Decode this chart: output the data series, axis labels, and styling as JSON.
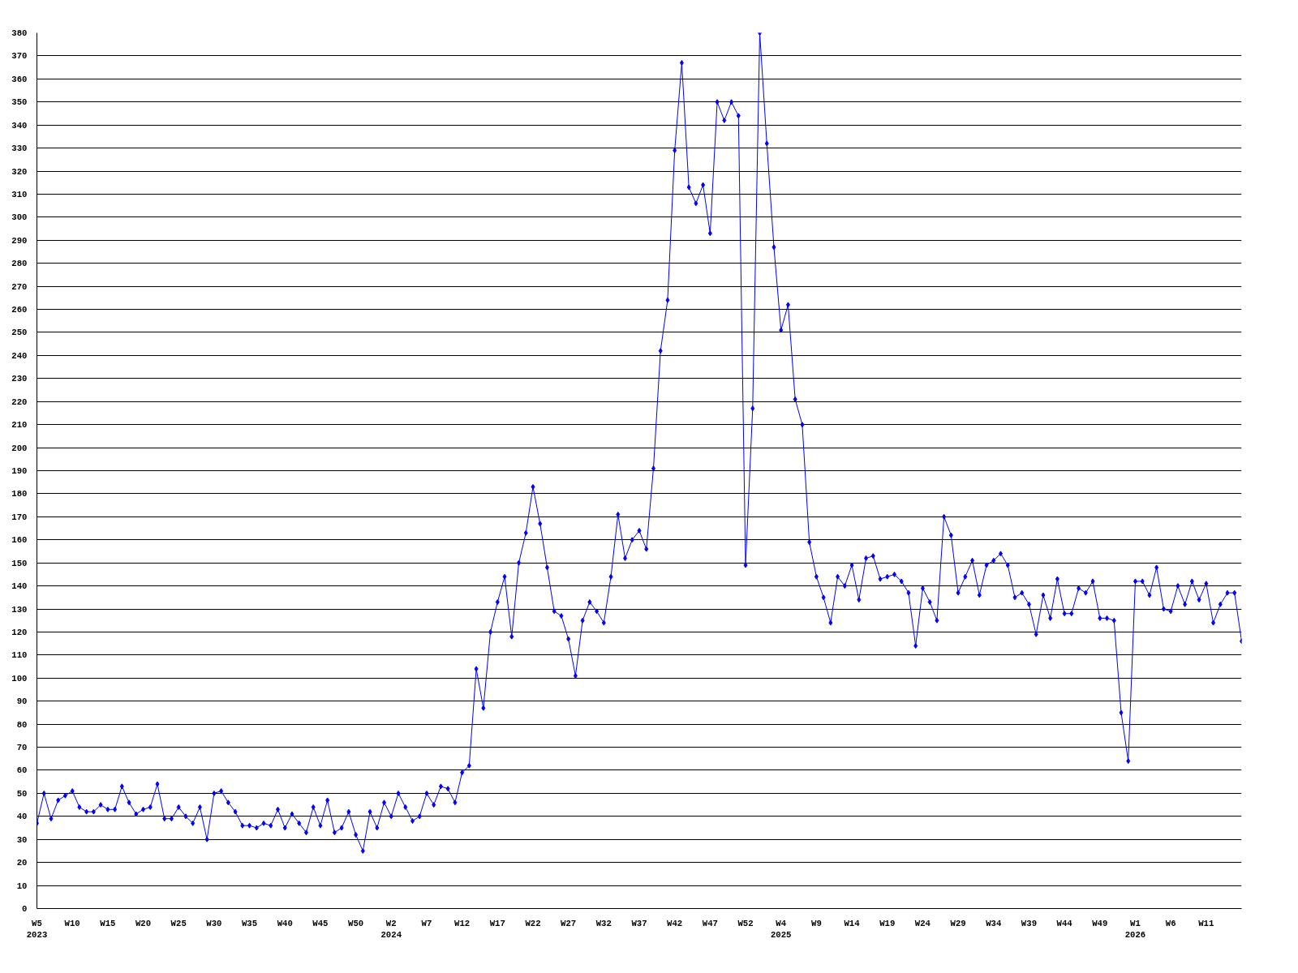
{
  "chart_data": {
    "type": "line",
    "categories": [
      "W5\n2023",
      null,
      null,
      null,
      null,
      "W10",
      null,
      null,
      null,
      null,
      "W15",
      null,
      null,
      null,
      null,
      "W20",
      null,
      null,
      null,
      null,
      "W25",
      null,
      null,
      null,
      null,
      "W30",
      null,
      null,
      null,
      null,
      "W35",
      null,
      null,
      null,
      null,
      "W40",
      null,
      null,
      null,
      null,
      "W45",
      null,
      null,
      null,
      null,
      "W50",
      null,
      null,
      null,
      null,
      "W2\n2024",
      null,
      null,
      null,
      null,
      "W7",
      null,
      null,
      null,
      null,
      "W12",
      null,
      null,
      null,
      null,
      "W17",
      null,
      null,
      null,
      null,
      "W22",
      null,
      null,
      null,
      null,
      "W27",
      null,
      null,
      null,
      null,
      "W32",
      null,
      null,
      null,
      null,
      "W37",
      null,
      null,
      null,
      null,
      "W42",
      null,
      null,
      null,
      null,
      "W47",
      null,
      null,
      null,
      null,
      "W52",
      null,
      null,
      null,
      null,
      "W4\n2025",
      null,
      null,
      null,
      null,
      "W9",
      null,
      null,
      null,
      null,
      "W14",
      null,
      null,
      null,
      null,
      "W19",
      null,
      null,
      null,
      null,
      "W24",
      null,
      null,
      null,
      null,
      "W29",
      null,
      null,
      null,
      null,
      "W34",
      null,
      null,
      null,
      null,
      "W39",
      null,
      null,
      null,
      null,
      "W44",
      null,
      null,
      null,
      null,
      "W49",
      null,
      null,
      null,
      null,
      "W1\n2026",
      null,
      null,
      null,
      null,
      "W6",
      null,
      null,
      null,
      null,
      "W11",
      null,
      null,
      null,
      null,
      null
    ],
    "series": [
      {
        "color": "#0000ff",
        "values": [
          37,
          50,
          39,
          47,
          49,
          51,
          44,
          42,
          42,
          45,
          43,
          43,
          53,
          46,
          41,
          43,
          44,
          54,
          39,
          39,
          44,
          40,
          37,
          44,
          30,
          50,
          51,
          46,
          42,
          36,
          36,
          35,
          37,
          36,
          43,
          35,
          41,
          37,
          33,
          44,
          36,
          47,
          33,
          35,
          42,
          32,
          25,
          42,
          35,
          46,
          40,
          50,
          44,
          38,
          40,
          50,
          45,
          53,
          52,
          46,
          59,
          62,
          104,
          87,
          120,
          133,
          144,
          118,
          150,
          163,
          183,
          167,
          148,
          129,
          127,
          117,
          101,
          125,
          133,
          129,
          124,
          144,
          171,
          152,
          160,
          164,
          156,
          191,
          242,
          264,
          329,
          367,
          313,
          306,
          314,
          293,
          350,
          342,
          350,
          344,
          149,
          217,
          380,
          332,
          287,
          251,
          262,
          221,
          210,
          159,
          144,
          135,
          124,
          144,
          140,
          149,
          134,
          152,
          153,
          143,
          144,
          145,
          142,
          137,
          114,
          139,
          133,
          125,
          170,
          162,
          137,
          144,
          151,
          136,
          149,
          151,
          154,
          149,
          135,
          137,
          132,
          119,
          136,
          126,
          143,
          128,
          128,
          139,
          137,
          142,
          126,
          126,
          125,
          85,
          64,
          142,
          142,
          136,
          148,
          130,
          129,
          140,
          132,
          142,
          134,
          141,
          124,
          132,
          137,
          137,
          116
        ]
      }
    ],
    "ylim": [
      0,
      380
    ],
    "yticks": [
      0,
      10,
      20,
      30,
      40,
      50,
      60,
      70,
      80,
      90,
      100,
      110,
      120,
      130,
      140,
      150,
      160,
      170,
      180,
      190,
      200,
      210,
      220,
      230,
      240,
      250,
      260,
      270,
      280,
      290,
      300,
      310,
      320,
      330,
      340,
      350,
      360,
      370,
      380
    ],
    "grid": "y",
    "marker": "diamond",
    "line_style": "solid"
  }
}
